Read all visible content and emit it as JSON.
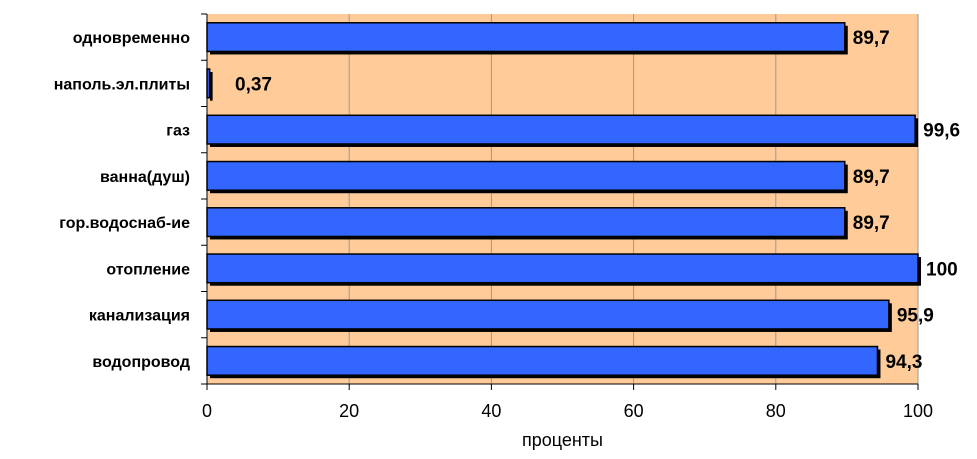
{
  "chart_data": {
    "type": "bar",
    "orientation": "horizontal",
    "categories": [
      "одновременно",
      "наполь.эл.плиты",
      "газ",
      "ванна(душ)",
      "гор.водоснаб-ие",
      "отопление",
      "канализация",
      "водопровод"
    ],
    "values": [
      89.7,
      0.37,
      99.6,
      89.7,
      89.7,
      100,
      95.9,
      94.3
    ],
    "value_labels": [
      "89,7",
      "0,37",
      "99,6",
      "89,7",
      "89,7",
      "100",
      "95,9",
      "94,3"
    ],
    "xlabel": "проценты",
    "ylabel": "",
    "title": "",
    "xlim": [
      0,
      100
    ],
    "xticks": [
      0,
      20,
      40,
      60,
      80,
      100
    ],
    "grid": "vertical",
    "legend": "none",
    "colors": {
      "plot_background": "#FFCC99",
      "bar_fill": "#3366FF",
      "bar_edge": "#000000",
      "gridline": "#999999"
    }
  }
}
